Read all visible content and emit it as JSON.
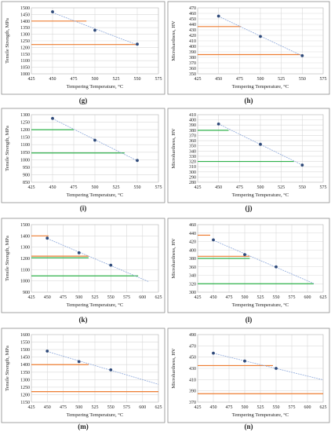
{
  "colors": {
    "orange": "#ED7D31",
    "green": "#2EB04A",
    "point": "#2F4A7A",
    "trend": "#8EA9DB",
    "grid": "#D9D9D9",
    "frame": "#8C8C8C"
  },
  "chart_data": [
    {
      "type": "scatter",
      "caption": "(g)",
      "xlabel": "Tempering Temperature, °C",
      "ylabel": "Tensile Strength, MPa",
      "xlim": [
        425,
        575
      ],
      "xticks": [
        425,
        450,
        475,
        500,
        525,
        550,
        575
      ],
      "ylim": [
        1000,
        1500
      ],
      "yticks": [
        1000,
        1050,
        1100,
        1150,
        1200,
        1250,
        1300,
        1350,
        1400,
        1450,
        1500
      ],
      "points": [
        {
          "x": 450,
          "y": 1470
        },
        {
          "x": 500,
          "y": 1330
        },
        {
          "x": 550,
          "y": 1225
        }
      ],
      "trend": {
        "x0": 450,
        "x1": 550
      },
      "refs": [
        {
          "y": 1400,
          "x1": 490,
          "color": "orange"
        },
        {
          "y": 1222,
          "x1": 550,
          "color": "orange"
        }
      ]
    },
    {
      "type": "scatter",
      "caption": "(h)",
      "xlabel": "Tempering Temperature, °C",
      "ylabel": "Microhardness, HV",
      "xlim": [
        425,
        575
      ],
      "xticks": [
        425,
        450,
        475,
        500,
        525,
        550,
        575
      ],
      "ylim": [
        350,
        470
      ],
      "yticks": [
        350,
        360,
        370,
        380,
        390,
        400,
        410,
        420,
        430,
        440,
        450,
        460,
        470
      ],
      "points": [
        {
          "x": 450,
          "y": 455
        },
        {
          "x": 500,
          "y": 418
        },
        {
          "x": 550,
          "y": 383
        }
      ],
      "trend": {
        "x0": 450,
        "x1": 550
      },
      "refs": [
        {
          "y": 436,
          "x1": 477,
          "color": "orange"
        },
        {
          "y": 385,
          "x1": 548,
          "color": "orange"
        }
      ]
    },
    {
      "type": "scatter",
      "caption": "(i)",
      "xlabel": "Tempering Temperature, °C",
      "ylabel": "Tensile Strength, MPa",
      "xlim": [
        425,
        575
      ],
      "xticks": [
        425,
        450,
        475,
        500,
        525,
        550,
        575
      ],
      "ylim": [
        850,
        1300
      ],
      "yticks": [
        850,
        900,
        950,
        1000,
        1050,
        1100,
        1150,
        1200,
        1250,
        1300
      ],
      "points": [
        {
          "x": 450,
          "y": 1275
        },
        {
          "x": 500,
          "y": 1130
        },
        {
          "x": 550,
          "y": 995
        }
      ],
      "trend": {
        "x0": 450,
        "x1": 550
      },
      "refs": [
        {
          "y": 1200,
          "x1": 475,
          "color": "green"
        },
        {
          "y": 1045,
          "x1": 535,
          "color": "green"
        }
      ]
    },
    {
      "type": "scatter",
      "caption": "(j)",
      "xlabel": "Tempering Temperature, °C",
      "ylabel": "Microhardness, HV",
      "xlim": [
        425,
        575
      ],
      "xticks": [
        425,
        450,
        475,
        500,
        525,
        550,
        575
      ],
      "ylim": [
        280,
        410
      ],
      "yticks": [
        280,
        290,
        300,
        310,
        320,
        330,
        340,
        350,
        360,
        370,
        380,
        390,
        400,
        410
      ],
      "points": [
        {
          "x": 450,
          "y": 392
        },
        {
          "x": 500,
          "y": 353
        },
        {
          "x": 550,
          "y": 313
        }
      ],
      "trend": {
        "x0": 450,
        "x1": 550
      },
      "refs": [
        {
          "y": 380,
          "x1": 462,
          "color": "green"
        },
        {
          "y": 320,
          "x1": 540,
          "color": "green"
        }
      ]
    },
    {
      "type": "scatter",
      "caption": "(k)",
      "xlabel": "Tempering Temperature, °C",
      "ylabel": "Tensile Strength, MPa",
      "xlim": [
        425,
        625
      ],
      "xticks": [
        425,
        450,
        475,
        500,
        525,
        550,
        575,
        600,
        625
      ],
      "ylim": [
        900,
        1500
      ],
      "yticks": [
        900,
        1000,
        1100,
        1200,
        1300,
        1400,
        1500
      ],
      "points": [
        {
          "x": 450,
          "y": 1380
        },
        {
          "x": 500,
          "y": 1250
        },
        {
          "x": 550,
          "y": 1140
        }
      ],
      "trend": {
        "x0": 450,
        "x1": 610
      },
      "refs": [
        {
          "y": 1400,
          "x1": 452,
          "color": "orange"
        },
        {
          "y": 1220,
          "x1": 515,
          "color": "orange"
        },
        {
          "y": 1205,
          "x1": 515,
          "color": "green"
        },
        {
          "y": 1045,
          "x1": 593,
          "color": "green"
        }
      ]
    },
    {
      "type": "scatter",
      "caption": "(l)",
      "xlabel": "Tempering Temperature, °C",
      "ylabel": "Microhardness, HV",
      "xlim": [
        425,
        625
      ],
      "xticks": [
        425,
        450,
        475,
        500,
        525,
        550,
        575,
        600,
        625
      ],
      "ylim": [
        300,
        460
      ],
      "yticks": [
        300,
        320,
        340,
        360,
        380,
        400,
        420,
        440,
        460
      ],
      "points": [
        {
          "x": 450,
          "y": 424
        },
        {
          "x": 500,
          "y": 389
        },
        {
          "x": 550,
          "y": 360
        }
      ],
      "trend": {
        "x0": 450,
        "x1": 610
      },
      "refs": [
        {
          "y": 435,
          "x1": 445,
          "color": "orange"
        },
        {
          "y": 385,
          "x1": 508,
          "color": "orange"
        },
        {
          "y": 380,
          "x1": 508,
          "color": "green"
        },
        {
          "y": 320,
          "x1": 610,
          "color": "green"
        }
      ]
    },
    {
      "type": "scatter",
      "caption": "(m)",
      "xlabel": "Tempering Temperature, °C",
      "ylabel": "Tensile Strength, MPa",
      "xlim": [
        425,
        625
      ],
      "xticks": [
        425,
        450,
        475,
        500,
        525,
        550,
        575,
        600,
        625
      ],
      "ylim": [
        1150,
        1600
      ],
      "yticks": [
        1150,
        1200,
        1250,
        1300,
        1350,
        1400,
        1450,
        1500,
        1550,
        1600
      ],
      "points": [
        {
          "x": 450,
          "y": 1490
        },
        {
          "x": 500,
          "y": 1420
        },
        {
          "x": 550,
          "y": 1365
        }
      ],
      "trend": {
        "x0": 450,
        "x1": 625
      },
      "refs": [
        {
          "y": 1400,
          "x1": 515,
          "color": "orange"
        },
        {
          "y": 1220,
          "x1": 625,
          "color": "orange"
        }
      ]
    },
    {
      "type": "scatter",
      "caption": "(n)",
      "xlabel": "Tempering Temperature, °C",
      "ylabel": "Microhardness, HV",
      "xlim": [
        425,
        625
      ],
      "xticks": [
        425,
        450,
        475,
        500,
        525,
        550,
        575,
        600,
        625
      ],
      "ylim": [
        370,
        490
      ],
      "yticks": [
        370,
        390,
        410,
        430,
        450,
        470,
        490
      ],
      "points": [
        {
          "x": 450,
          "y": 457
        },
        {
          "x": 500,
          "y": 443
        },
        {
          "x": 550,
          "y": 430
        }
      ],
      "trend": {
        "x0": 450,
        "x1": 625
      },
      "refs": [
        {
          "y": 435,
          "x1": 545,
          "color": "orange"
        },
        {
          "y": 385,
          "x1": 625,
          "color": "orange"
        }
      ]
    }
  ]
}
